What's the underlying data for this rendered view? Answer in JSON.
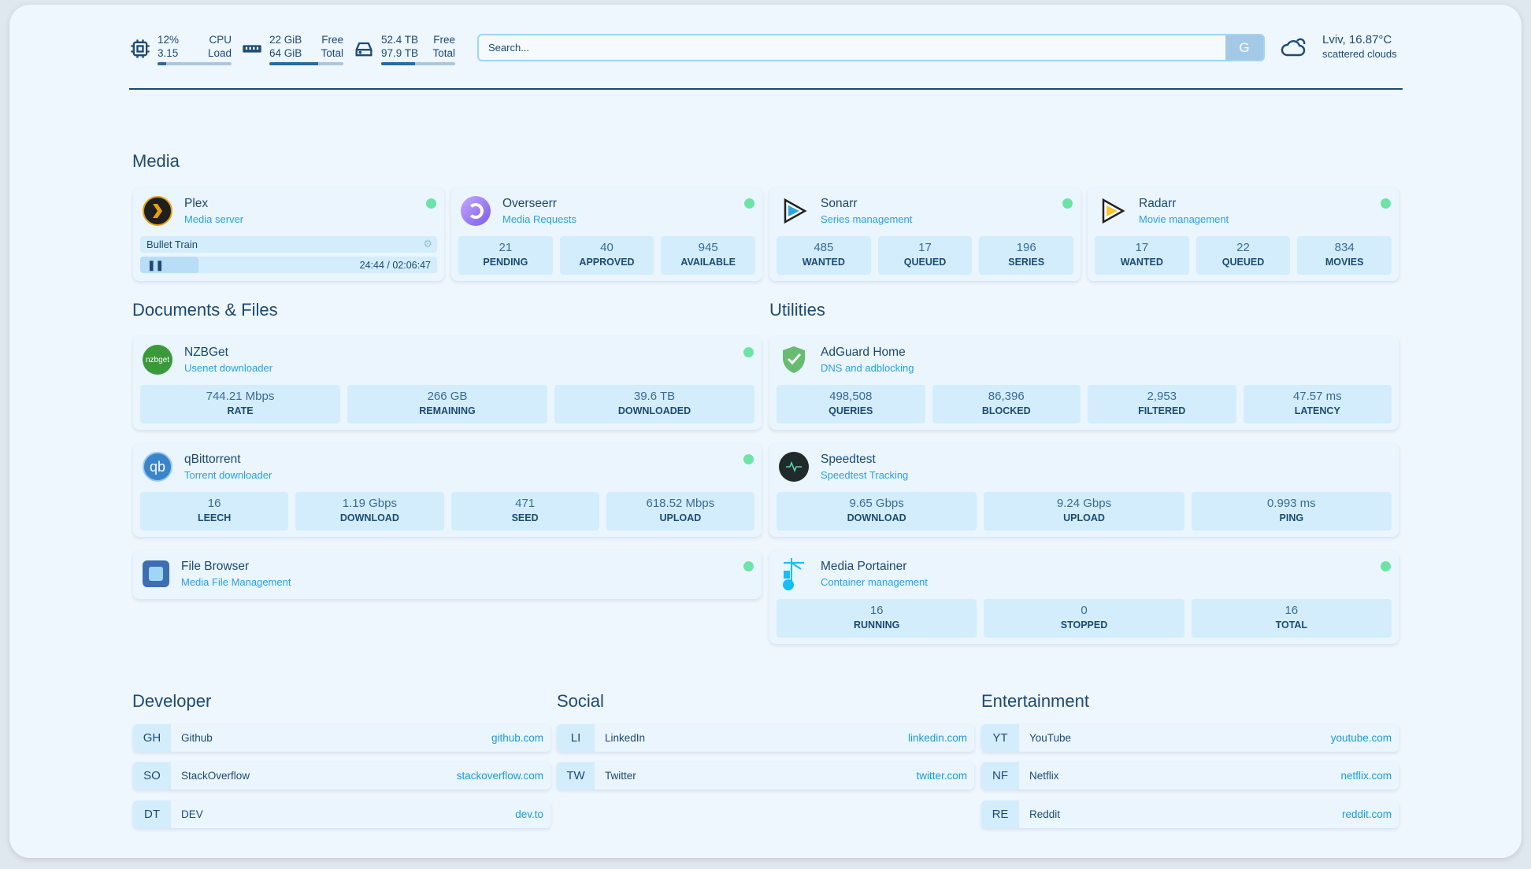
{
  "header": {
    "cpu": {
      "usage": "12%",
      "label1": "CPU",
      "load": "3.15",
      "label2": "Load",
      "fill": 12
    },
    "memory": {
      "free": "22 GiB",
      "label1": "Free",
      "total": "64 GiB",
      "label2": "Total",
      "fill": 66
    },
    "disk": {
      "free": "52.4 TB",
      "label1": "Free",
      "total": "97.9 TB",
      "label2": "Total",
      "fill": 46
    },
    "search": {
      "placeholder": "Search...",
      "button": "G"
    },
    "weather": {
      "location_temp": "Lviv, 16.87°C",
      "condition": "scattered clouds"
    }
  },
  "sections": {
    "media": "Media",
    "docs": "Documents & Files",
    "utilities": "Utilities",
    "developer": "Developer",
    "social": "Social",
    "entertainment": "Entertainment"
  },
  "media": [
    {
      "name": "Plex",
      "sub": "Media server",
      "icon": "plex-icon",
      "status": "online",
      "now_playing": {
        "title": "Bullet Train",
        "time": "24:44 / 02:06:47",
        "progress": 19.5
      }
    },
    {
      "name": "Overseerr",
      "sub": "Media Requests",
      "icon": "overseerr-icon",
      "status": "online",
      "stats": [
        {
          "v": "21",
          "l": "PENDING"
        },
        {
          "v": "40",
          "l": "APPROVED"
        },
        {
          "v": "945",
          "l": "AVAILABLE"
        }
      ]
    },
    {
      "name": "Sonarr",
      "sub": "Series management",
      "icon": "sonarr-icon",
      "status": "online",
      "stats": [
        {
          "v": "485",
          "l": "WANTED"
        },
        {
          "v": "17",
          "l": "QUEUED"
        },
        {
          "v": "196",
          "l": "SERIES"
        }
      ]
    },
    {
      "name": "Radarr",
      "sub": "Movie management",
      "icon": "radarr-icon",
      "status": "online",
      "stats": [
        {
          "v": "17",
          "l": "WANTED"
        },
        {
          "v": "22",
          "l": "QUEUED"
        },
        {
          "v": "834",
          "l": "MOVIES"
        }
      ]
    }
  ],
  "docs": [
    {
      "name": "NZBGet",
      "sub": "Usenet downloader",
      "icon": "nzbget-icon",
      "icon_text": "nzbget",
      "status": "online",
      "stats": [
        {
          "v": "744.21 Mbps",
          "l": "RATE"
        },
        {
          "v": "266 GB",
          "l": "REMAINING"
        },
        {
          "v": "39.6 TB",
          "l": "DOWNLOADED"
        }
      ]
    },
    {
      "name": "qBittorrent",
      "sub": "Torrent downloader",
      "icon": "qbittorrent-icon",
      "icon_text": "qb",
      "status": "online",
      "stats": [
        {
          "v": "16",
          "l": "LEECH"
        },
        {
          "v": "1.19 Gbps",
          "l": "DOWNLOAD"
        },
        {
          "v": "471",
          "l": "SEED"
        },
        {
          "v": "618.52 Mbps",
          "l": "UPLOAD"
        }
      ]
    },
    {
      "name": "File Browser",
      "sub": "Media File Management",
      "icon": "filebrowser-icon",
      "status": "online",
      "stats": []
    }
  ],
  "utilities": [
    {
      "name": "AdGuard Home",
      "sub": "DNS and adblocking",
      "icon": "adguard-icon",
      "stats": [
        {
          "v": "498,508",
          "l": "QUERIES"
        },
        {
          "v": "86,396",
          "l": "BLOCKED"
        },
        {
          "v": "2,953",
          "l": "FILTERED"
        },
        {
          "v": "47.57 ms",
          "l": "LATENCY"
        }
      ]
    },
    {
      "name": "Speedtest",
      "sub": "Speedtest Tracking",
      "icon": "speedtest-icon",
      "stats": [
        {
          "v": "9.65 Gbps",
          "l": "DOWNLOAD"
        },
        {
          "v": "9.24 Gbps",
          "l": "UPLOAD"
        },
        {
          "v": "0.993 ms",
          "l": "PING"
        }
      ]
    },
    {
      "name": "Media Portainer",
      "sub": "Container management",
      "icon": "portainer-icon",
      "status": "online",
      "stats": [
        {
          "v": "16",
          "l": "RUNNING"
        },
        {
          "v": "0",
          "l": "STOPPED"
        },
        {
          "v": "16",
          "l": "TOTAL"
        }
      ]
    }
  ],
  "bookmarks": {
    "developer": [
      {
        "abbr": "GH",
        "name": "Github",
        "url": "github.com"
      },
      {
        "abbr": "SO",
        "name": "StackOverflow",
        "url": "stackoverflow.com"
      },
      {
        "abbr": "DT",
        "name": "DEV",
        "url": "dev.to"
      }
    ],
    "social": [
      {
        "abbr": "LI",
        "name": "LinkedIn",
        "url": "linkedin.com"
      },
      {
        "abbr": "TW",
        "name": "Twitter",
        "url": "twitter.com"
      }
    ],
    "entertainment": [
      {
        "abbr": "YT",
        "name": "YouTube",
        "url": "youtube.com"
      },
      {
        "abbr": "NF",
        "name": "Netflix",
        "url": "netflix.com"
      },
      {
        "abbr": "RE",
        "name": "Reddit",
        "url": "reddit.com"
      }
    ]
  },
  "colors": {
    "text": "#1d4a73",
    "accent": "#2aa0e6",
    "status_online": "#6ee3a7",
    "stat_bg": "#d3edfc"
  }
}
